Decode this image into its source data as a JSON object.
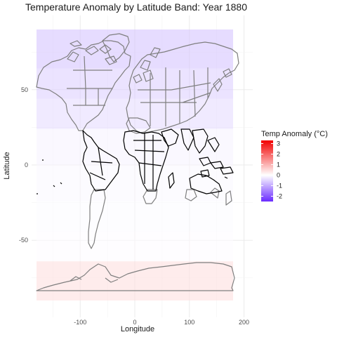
{
  "title": "Temperature Anomaly by Latitude Band: Year 1880",
  "chart_data": {
    "type": "heatmap",
    "title": "Temperature Anomaly by Latitude Band: Year 1880",
    "xlabel": "Longitude",
    "ylabel": "Latitude",
    "xlim": [
      -180,
      200
    ],
    "ylim": [
      -90,
      90
    ],
    "x_ticks": [
      -100,
      0,
      100,
      200
    ],
    "y_ticks": [
      -50,
      0,
      50
    ],
    "grid": true,
    "legend": {
      "title": "Temp Anomaly (°C)",
      "placement": "right",
      "ticks": [
        3,
        2,
        1,
        0,
        -1,
        -2
      ],
      "range": [
        -2.5,
        3.3
      ],
      "high_color": "#f20000",
      "mid_color": "#ffffff",
      "low_color": "#6a2bff"
    },
    "bands": [
      {
        "lat_min": 64,
        "lat_max": 90,
        "anomaly": -0.75
      },
      {
        "lat_min": 44,
        "lat_max": 64,
        "anomaly": -0.6
      },
      {
        "lat_min": 24,
        "lat_max": 44,
        "anomaly": -0.45
      },
      {
        "lat_min": 0,
        "lat_max": 24,
        "anomaly": -0.15
      },
      {
        "lat_min": -24,
        "lat_max": 0,
        "anomaly": -0.08
      },
      {
        "lat_min": -44,
        "lat_max": -24,
        "anomaly": -0.05
      },
      {
        "lat_min": -64,
        "lat_max": -44,
        "anomaly": -0.04
      },
      {
        "lat_min": -90,
        "lat_max": -64,
        "anomaly": 0.45
      }
    ]
  },
  "colors": {
    "land_outline": "#7f7f7f",
    "tropics_outline": "#000000",
    "grid": "#ebebeb"
  }
}
